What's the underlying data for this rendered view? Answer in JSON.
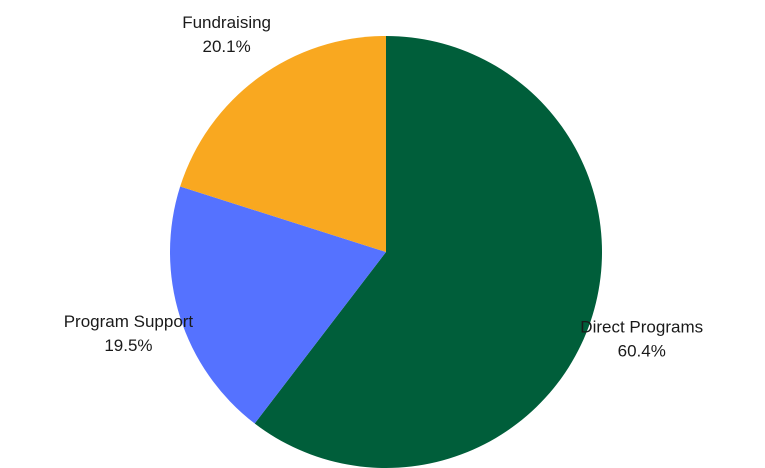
{
  "chart_data": {
    "type": "pie",
    "title": "",
    "start_angle_deg": 0,
    "direction": "clockwise",
    "slices": [
      {
        "label": "Direct Programs",
        "value": 60.4,
        "pct_text": "60.4%",
        "color": "#005e3a"
      },
      {
        "label": "Program Support",
        "value": 19.5,
        "pct_text": "19.5%",
        "color": "#5572ff"
      },
      {
        "label": "Fundraising",
        "value": 20.1,
        "pct_text": "20.1%",
        "color": "#f9a820"
      }
    ]
  }
}
